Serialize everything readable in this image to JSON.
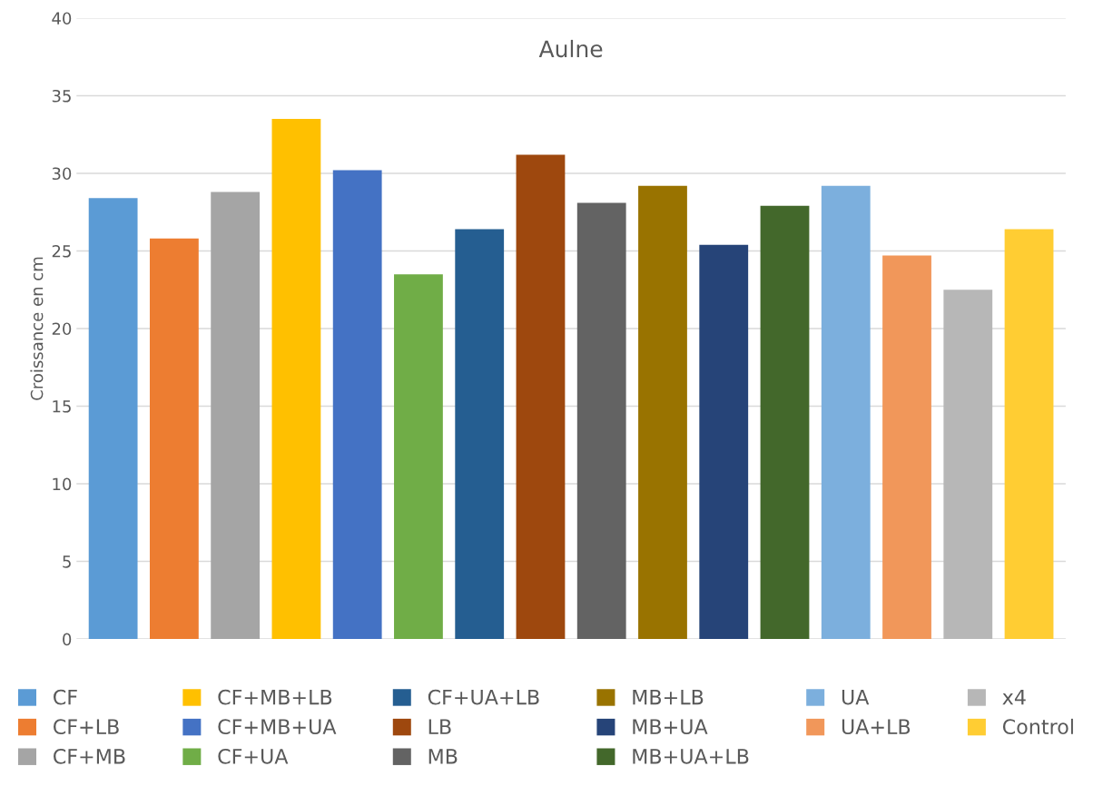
{
  "chart_data": {
    "type": "bar",
    "title": "Aulne",
    "ylabel": "Croissance en cm",
    "categories": [
      null,
      null,
      null,
      null,
      null,
      null,
      null,
      null,
      null,
      null,
      null,
      null,
      null,
      null,
      null,
      null
    ],
    "series": [
      {
        "name": "CF",
        "color": "#5b9bd5",
        "values": [
          28.4,
          null,
          null,
          null,
          null,
          null,
          null,
          null,
          null,
          null,
          null,
          null,
          null,
          null,
          null,
          null
        ]
      },
      {
        "name": "CF+LB",
        "color": "#ed7d31",
        "values": [
          null,
          25.8,
          null,
          null,
          null,
          null,
          null,
          null,
          null,
          null,
          null,
          null,
          null,
          null,
          null,
          null
        ]
      },
      {
        "name": "CF+MB",
        "color": "#a5a5a5",
        "values": [
          null,
          null,
          28.8,
          null,
          null,
          null,
          null,
          null,
          null,
          null,
          null,
          null,
          null,
          null,
          null,
          null
        ]
      },
      {
        "name": "CF+MB+LB",
        "color": "#ffc000",
        "values": [
          null,
          null,
          null,
          33.5,
          null,
          null,
          null,
          null,
          null,
          null,
          null,
          null,
          null,
          null,
          null,
          null
        ]
      },
      {
        "name": "CF+MB+UA",
        "color": "#4472c4",
        "values": [
          null,
          null,
          null,
          null,
          30.2,
          null,
          null,
          null,
          null,
          null,
          null,
          null,
          null,
          null,
          null,
          null
        ]
      },
      {
        "name": "CF+UA",
        "color": "#70ad47",
        "values": [
          null,
          null,
          null,
          null,
          null,
          23.5,
          null,
          null,
          null,
          null,
          null,
          null,
          null,
          null,
          null,
          null
        ]
      },
      {
        "name": "CF+UA+LB",
        "color": "#255e91",
        "values": [
          null,
          null,
          null,
          null,
          null,
          null,
          26.4,
          null,
          null,
          null,
          null,
          null,
          null,
          null,
          null,
          null
        ]
      },
      {
        "name": "LB",
        "color": "#9e480e",
        "values": [
          null,
          null,
          null,
          null,
          null,
          null,
          null,
          31.2,
          null,
          null,
          null,
          null,
          null,
          null,
          null,
          null
        ]
      },
      {
        "name": "MB",
        "color": "#636363",
        "values": [
          null,
          null,
          null,
          null,
          null,
          null,
          null,
          null,
          28.1,
          null,
          null,
          null,
          null,
          null,
          null,
          null
        ]
      },
      {
        "name": "MB+LB",
        "color": "#997300",
        "values": [
          null,
          null,
          null,
          null,
          null,
          null,
          null,
          null,
          null,
          29.2,
          null,
          null,
          null,
          null,
          null,
          null
        ]
      },
      {
        "name": "MB+UA",
        "color": "#264478",
        "values": [
          null,
          null,
          null,
          null,
          null,
          null,
          null,
          null,
          null,
          null,
          25.4,
          null,
          null,
          null,
          null,
          null
        ]
      },
      {
        "name": "MB+UA+LB",
        "color": "#43682b",
        "values": [
          null,
          null,
          null,
          null,
          null,
          null,
          null,
          null,
          null,
          null,
          null,
          27.9,
          null,
          null,
          null,
          null
        ]
      },
      {
        "name": "UA",
        "color": "#7cafdd",
        "values": [
          null,
          null,
          null,
          null,
          null,
          null,
          null,
          null,
          null,
          null,
          null,
          null,
          29.2,
          null,
          null,
          null
        ]
      },
      {
        "name": "UA+LB",
        "color": "#f1975a",
        "values": [
          null,
          null,
          null,
          null,
          null,
          null,
          null,
          null,
          null,
          null,
          null,
          null,
          null,
          24.7,
          null,
          null
        ]
      },
      {
        "name": "x4",
        "color": "#b7b7b7",
        "values": [
          null,
          null,
          null,
          null,
          null,
          null,
          null,
          null,
          null,
          null,
          null,
          null,
          null,
          null,
          22.5,
          null
        ]
      },
      {
        "name": "Control",
        "color": "#ffcd33",
        "values": [
          null,
          null,
          null,
          null,
          null,
          null,
          null,
          null,
          null,
          null,
          null,
          null,
          null,
          null,
          null,
          26.4
        ]
      }
    ],
    "ylim": [
      0,
      40
    ],
    "yticks": [
      0,
      5,
      10,
      15,
      20,
      25,
      30,
      35,
      40
    ],
    "grid": "y",
    "legend": "bottom"
  }
}
